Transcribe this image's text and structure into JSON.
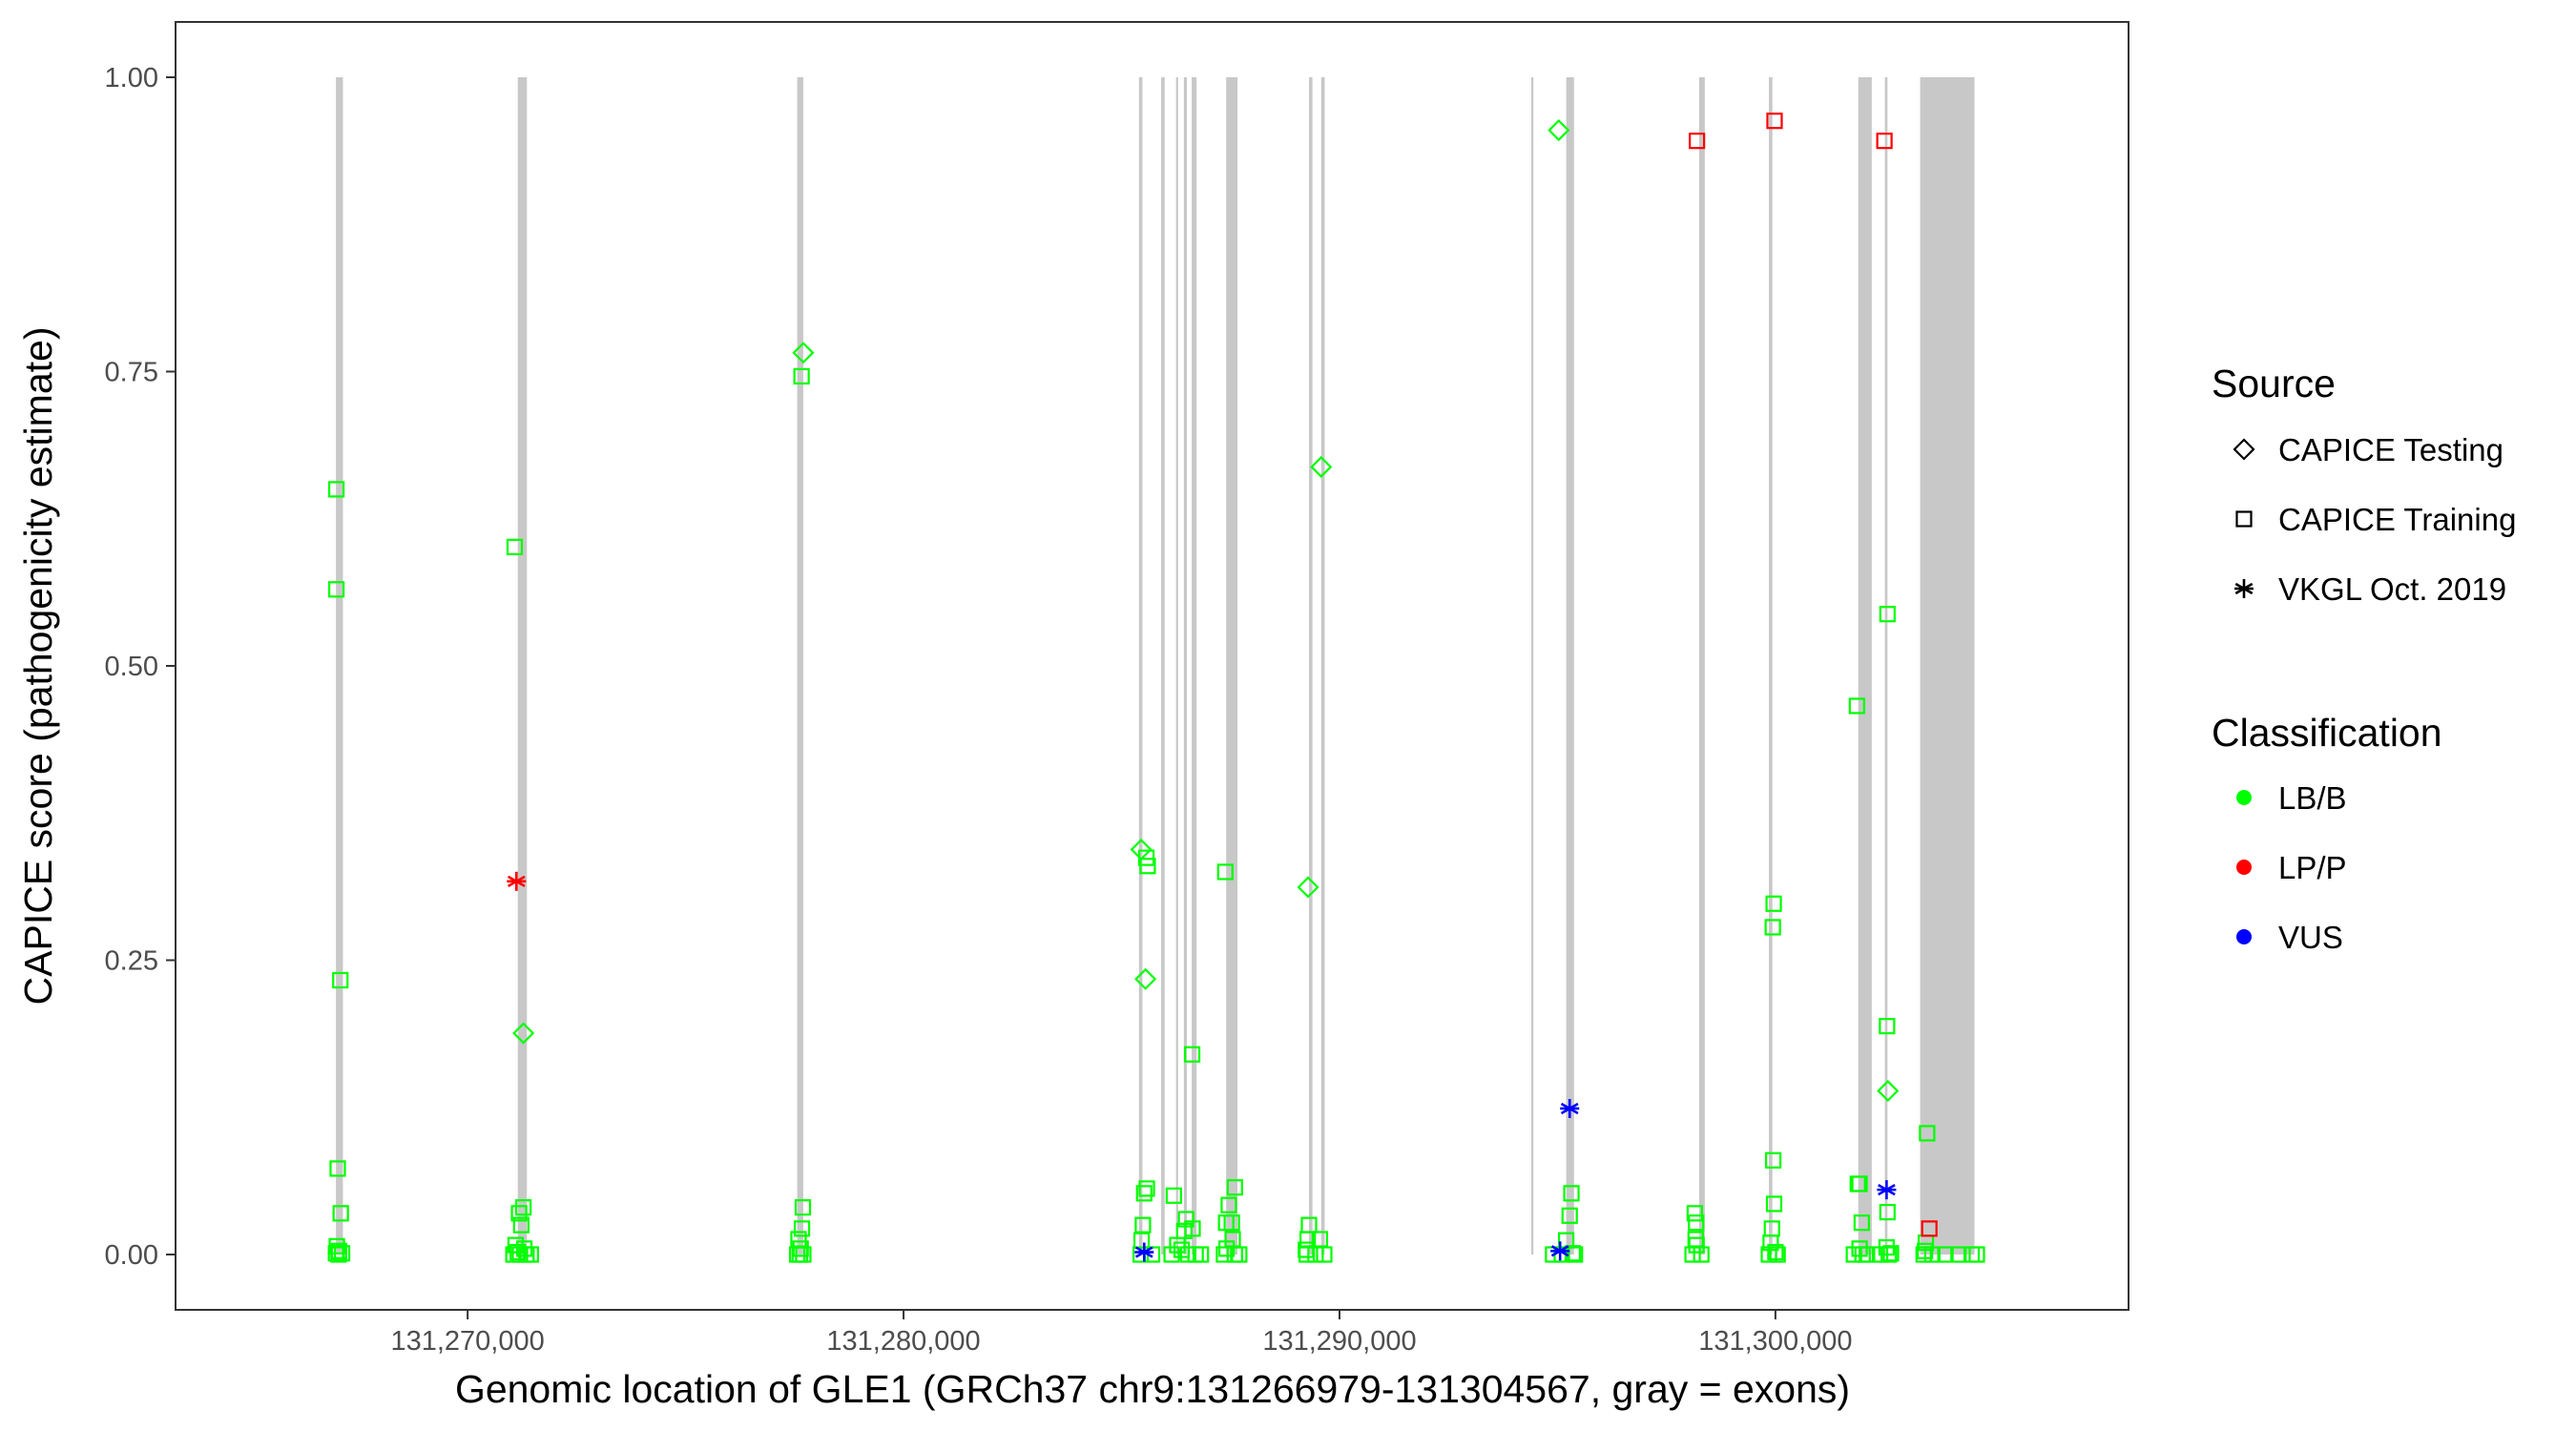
{
  "chart_data": {
    "type": "scatter",
    "title": "",
    "xlabel": "Genomic location of GLE1 (GRCh37 chr9:131266979-131304567, gray = exons)",
    "ylabel": "CAPICE score (pathogenicity estimate)",
    "xlim": [
      131263300,
      131308100
    ],
    "ylim": [
      -0.047,
      1.047
    ],
    "x_ticks": [
      {
        "value": 131270000,
        "label": "131,270,000"
      },
      {
        "value": 131280000,
        "label": "131,280,000"
      },
      {
        "value": 131290000,
        "label": "131,290,000"
      },
      {
        "value": 131300000,
        "label": "131,300,000"
      }
    ],
    "y_ticks": [
      {
        "value": 0,
        "label": "0.00"
      },
      {
        "value": 0.25,
        "label": "0.25"
      },
      {
        "value": 0.5,
        "label": "0.50"
      },
      {
        "value": 0.75,
        "label": "0.75"
      },
      {
        "value": 1,
        "label": "1.00"
      }
    ],
    "grid": false,
    "exons": [
      [
        131266979,
        131267140
      ],
      [
        131271150,
        131271360
      ],
      [
        131277560,
        131277700
      ],
      [
        131285400,
        131285480
      ],
      [
        131285910,
        131285990
      ],
      [
        131286250,
        131286280
      ],
      [
        131286430,
        131286500
      ],
      [
        131286610,
        131286720
      ],
      [
        131287400,
        131287660
      ],
      [
        131289300,
        131289380
      ],
      [
        131289580,
        131289660
      ],
      [
        131294400,
        131294430
      ],
      [
        131295200,
        131295380
      ],
      [
        131298250,
        131298380
      ],
      [
        131299850,
        131299930
      ],
      [
        131301900,
        131302210
      ],
      [
        131302510,
        131302570
      ],
      [
        131303320,
        131304567
      ]
    ],
    "legend": {
      "position": "right",
      "source_title": "Source",
      "source_entries": [
        {
          "label": "CAPICE Testing",
          "shape": "diamond"
        },
        {
          "label": "CAPICE Training",
          "shape": "square"
        },
        {
          "label": "VKGL Oct. 2019",
          "shape": "asterisk"
        }
      ],
      "class_title": "Classification",
      "class_entries": [
        {
          "label": "LB/B",
          "color": "#00ff00"
        },
        {
          "label": "LP/P",
          "color": "#ff0000"
        },
        {
          "label": "VUS",
          "color": "#0000ff"
        }
      ]
    },
    "series": [
      {
        "source": "CAPICE Training",
        "classification": "LB/B",
        "shape": "square",
        "color": "#00ff00",
        "points": [
          [
            131266990,
            0.65
          ],
          [
            131266990,
            0.565
          ],
          [
            131267080,
            0.233
          ],
          [
            131267020,
            0.073
          ],
          [
            131267090,
            0.035
          ],
          [
            131267000,
            0.007
          ],
          [
            131267050,
            0.003
          ],
          [
            131266980,
            0.001
          ],
          [
            131267120,
            0.001
          ],
          [
            131267040,
            0.0
          ],
          [
            131271080,
            0.601
          ],
          [
            131271180,
            0.035
          ],
          [
            131271280,
            0.04
          ],
          [
            131271230,
            0.025
          ],
          [
            131271100,
            0.008
          ],
          [
            131271300,
            0.005
          ],
          [
            131271150,
            0.002
          ],
          [
            131271050,
            0.0
          ],
          [
            131271350,
            0.0
          ],
          [
            131271200,
            0.0
          ],
          [
            131271450,
            0.0
          ],
          [
            131277660,
            0.746
          ],
          [
            131277690,
            0.04
          ],
          [
            131277670,
            0.022
          ],
          [
            131277590,
            0.013
          ],
          [
            131277640,
            0.005
          ],
          [
            131277560,
            0.0
          ],
          [
            131277700,
            0.0
          ],
          [
            131277620,
            0.0
          ],
          [
            131285520,
            0.052
          ],
          [
            131285580,
            0.056
          ],
          [
            131285490,
            0.025
          ],
          [
            131285460,
            0.012
          ],
          [
            131285440,
            0.0
          ],
          [
            131285700,
            0.0
          ],
          [
            131285570,
            0.337
          ],
          [
            131285600,
            0.33
          ],
          [
            131286200,
            0.05
          ],
          [
            131286480,
            0.03
          ],
          [
            131286440,
            0.02
          ],
          [
            131286630,
            0.022
          ],
          [
            131286280,
            0.008
          ],
          [
            131286380,
            0.004
          ],
          [
            131286620,
            0.17
          ],
          [
            131286530,
            0.0
          ],
          [
            131286700,
            0.0
          ],
          [
            131286820,
            0.0
          ],
          [
            131286150,
            0.0
          ],
          [
            131287380,
            0.325
          ],
          [
            131287460,
            0.042
          ],
          [
            131287600,
            0.057
          ],
          [
            131287530,
            0.027
          ],
          [
            131287400,
            0.027
          ],
          [
            131287550,
            0.013
          ],
          [
            131287410,
            0.005
          ],
          [
            131287350,
            0.0
          ],
          [
            131287600,
            0.0
          ],
          [
            131287700,
            0.0
          ],
          [
            131289300,
            0.025
          ],
          [
            131289270,
            0.013
          ],
          [
            131289550,
            0.013
          ],
          [
            131289230,
            0.004
          ],
          [
            131289250,
            0.0
          ],
          [
            131289450,
            0.0
          ],
          [
            131289650,
            0.0
          ],
          [
            131295320,
            0.052
          ],
          [
            131295280,
            0.033
          ],
          [
            131295200,
            0.012
          ],
          [
            131295100,
            0.0
          ],
          [
            131294900,
            0.0
          ],
          [
            131295400,
            0.0
          ],
          [
            131295350,
            0.001
          ],
          [
            131298150,
            0.035
          ],
          [
            131298180,
            0.027
          ],
          [
            131298170,
            0.013
          ],
          [
            131298190,
            0.008
          ],
          [
            131298100,
            0.0
          ],
          [
            131298300,
            0.0
          ],
          [
            131299960,
            0.298
          ],
          [
            131299940,
            0.278
          ],
          [
            131299950,
            0.08
          ],
          [
            131299970,
            0.043
          ],
          [
            131299920,
            0.022
          ],
          [
            131299890,
            0.01
          ],
          [
            131299850,
            0.0
          ],
          [
            131300050,
            0.0
          ],
          [
            131300000,
            0.002
          ],
          [
            131301870,
            0.466
          ],
          [
            131301890,
            0.06
          ],
          [
            131301930,
            0.06
          ],
          [
            131301980,
            0.027
          ],
          [
            131301800,
            0.0
          ],
          [
            131302000,
            0.0
          ],
          [
            131302100,
            0.0
          ],
          [
            131301930,
            0.005
          ],
          [
            131302570,
            0.544
          ],
          [
            131302560,
            0.194
          ],
          [
            131302570,
            0.036
          ],
          [
            131302550,
            0.006
          ],
          [
            131302400,
            0.0
          ],
          [
            131302600,
            0.0
          ],
          [
            131302650,
            0.001
          ],
          [
            131303480,
            0.103
          ],
          [
            131303450,
            0.01
          ],
          [
            131303430,
            0.003
          ],
          [
            131303400,
            0.0
          ],
          [
            131303600,
            0.0
          ],
          [
            131303900,
            0.0
          ],
          [
            131304200,
            0.0
          ],
          [
            131304500,
            0.0
          ],
          [
            131304620,
            0.0
          ]
        ]
      },
      {
        "source": "CAPICE Testing",
        "classification": "LB/B",
        "shape": "diamond",
        "color": "#00ff00",
        "points": [
          [
            131271280,
            0.188
          ],
          [
            131277700,
            0.766
          ],
          [
            131285450,
            0.344
          ],
          [
            131285550,
            0.234
          ],
          [
            131289280,
            0.312
          ],
          [
            131289580,
            0.669
          ],
          [
            131295030,
            0.955
          ],
          [
            131302580,
            0.139
          ]
        ]
      },
      {
        "source": "CAPICE Training",
        "classification": "LP/P",
        "shape": "square",
        "color": "#ff0000",
        "points": [
          [
            131298200,
            0.946
          ],
          [
            131299980,
            0.963
          ],
          [
            131302500,
            0.946
          ],
          [
            131303530,
            0.022
          ]
        ]
      },
      {
        "source": "VKGL Oct. 2019",
        "classification": "LP/P",
        "shape": "asterisk",
        "color": "#ff0000",
        "points": [
          [
            131271120,
            0.317
          ]
        ]
      },
      {
        "source": "VKGL Oct. 2019",
        "classification": "VUS",
        "shape": "asterisk",
        "color": "#0000ff",
        "points": [
          [
            131285520,
            0.002
          ],
          [
            131295280,
            0.124
          ],
          [
            131295060,
            0.003
          ],
          [
            131302550,
            0.055
          ]
        ]
      }
    ]
  }
}
